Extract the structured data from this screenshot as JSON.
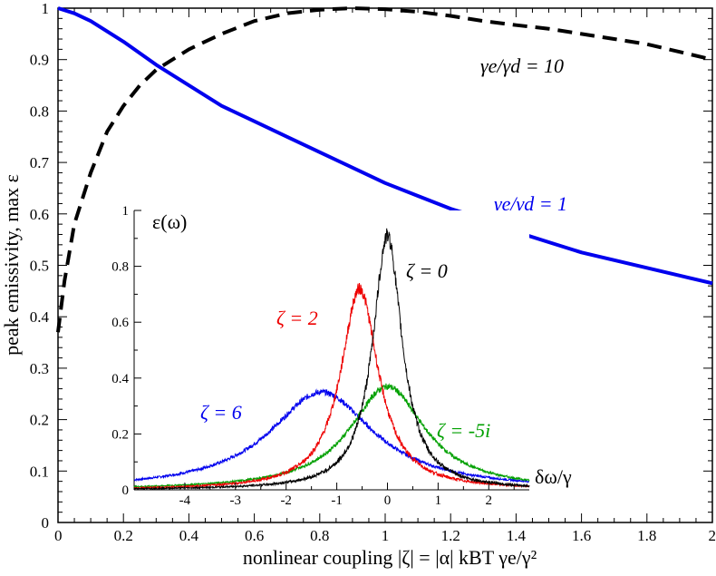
{
  "chart_data": [
    {
      "type": "line",
      "ylabel": "peak emissivity, max ε",
      "xlabel": "nonlinear coupling |ζ| = |α| kBT γe/γ²",
      "xlim": [
        0,
        2
      ],
      "ylim": [
        0,
        1
      ],
      "x_ticks": [
        "0",
        "0.2",
        "0.4",
        "0.6",
        "0.8",
        "1",
        "1.2",
        "1.4",
        "1.6",
        "1.8",
        "2"
      ],
      "y_ticks": [
        "0",
        "0.1",
        "0.2",
        "0.3",
        "0.4",
        "0.5",
        "0.6",
        "0.7",
        "0.8",
        "0.9",
        "1"
      ],
      "series": [
        {
          "name": "γe/γd = 10",
          "color": "#000000",
          "dashed": true,
          "x": [
            0,
            0.02,
            0.05,
            0.1,
            0.15,
            0.2,
            0.25,
            0.3,
            0.35,
            0.4,
            0.5,
            0.6,
            0.7,
            0.8,
            0.9,
            1.0,
            1.1,
            1.2,
            1.3,
            1.4,
            1.5,
            1.6,
            1.7,
            1.8,
            1.9,
            2.0
          ],
          "y": [
            0.37,
            0.47,
            0.58,
            0.68,
            0.76,
            0.81,
            0.85,
            0.88,
            0.9,
            0.92,
            0.95,
            0.975,
            0.99,
            0.997,
            1.0,
            0.998,
            0.993,
            0.985,
            0.975,
            0.967,
            0.96,
            0.95,
            0.94,
            0.93,
            0.915,
            0.9
          ]
        },
        {
          "name": "γe/γd = 1",
          "color": "#0000ee",
          "dashed": false,
          "x": [
            0,
            0.05,
            0.1,
            0.2,
            0.3,
            0.4,
            0.5,
            0.6,
            0.7,
            0.8,
            0.9,
            1.0,
            1.1,
            1.2,
            1.3,
            1.4,
            1.5,
            1.6,
            1.7,
            1.8,
            1.9,
            2.0
          ],
          "y": [
            1.0,
            0.99,
            0.975,
            0.935,
            0.89,
            0.85,
            0.81,
            0.78,
            0.75,
            0.72,
            0.69,
            0.66,
            0.635,
            0.61,
            0.59,
            0.565,
            0.545,
            0.525,
            0.51,
            0.495,
            0.48,
            0.465
          ]
        }
      ],
      "annotations": [
        "γe/γd = 10",
        "γe/γd = 1"
      ]
    },
    {
      "type": "line",
      "title": "ε(ω)",
      "xlabel": "δω/γ",
      "xlim": [
        -5,
        2.8
      ],
      "ylim": [
        0,
        1
      ],
      "x_ticks": [
        "-4",
        "-3",
        "-2",
        "-1",
        "0",
        "1",
        "2"
      ],
      "y_ticks": [
        "0",
        "0.2",
        "0.4",
        "0.6",
        "0.8",
        "1"
      ],
      "series": [
        {
          "name": "ζ = 0",
          "color": "#000000",
          "peak_x": 0.0,
          "peak_y": 0.91,
          "width": 0.35
        },
        {
          "name": "ζ = 2",
          "color": "#ee0000",
          "peak_x": -0.55,
          "peak_y": 0.72,
          "width": 0.45
        },
        {
          "name": "ζ = 6",
          "color": "#0000ee",
          "peak_x": -1.3,
          "peak_y": 0.35,
          "width": 1.25
        },
        {
          "name": "ζ = -5i",
          "color": "#00a000",
          "peak_x": 0.0,
          "peak_y": 0.37,
          "width": 0.9
        }
      ],
      "annotations": [
        "ζ = 0",
        "ζ = 2",
        "ζ = 6",
        "ζ = -5i"
      ]
    }
  ]
}
